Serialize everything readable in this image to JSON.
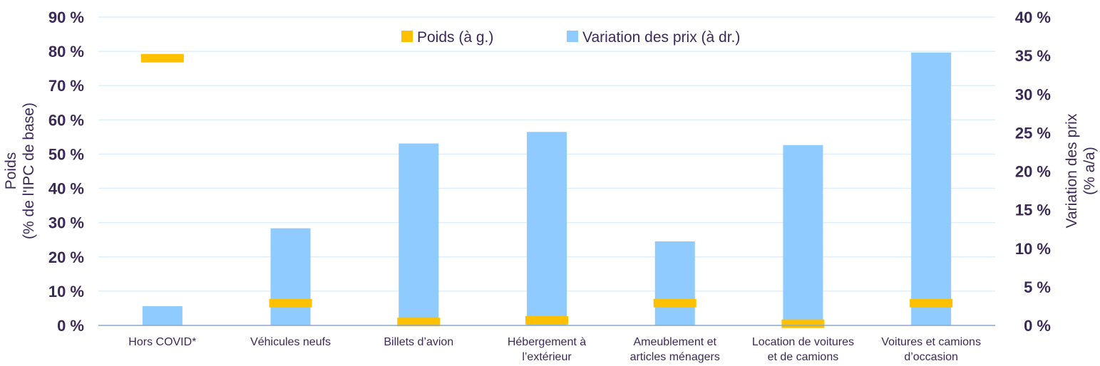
{
  "chart_data": {
    "type": "bar",
    "categories": [
      [
        "Hors COVID*"
      ],
      [
        "Véhicules neufs"
      ],
      [
        "Billets d’avion"
      ],
      [
        "Hébergement à",
        "l’extérieur"
      ],
      [
        "Ameublement et",
        "articles ménagers"
      ],
      [
        "Location de voitures",
        "et de camions"
      ],
      [
        "Voitures et camions",
        "d’occasion"
      ]
    ],
    "series": [
      {
        "name": "Poids (à g.)",
        "axis": "left",
        "mark": "dash",
        "color": "#ffc000",
        "values": [
          78,
          6.5,
          1,
          1.5,
          6.5,
          0.5,
          6.5
        ]
      },
      {
        "name": "Variation des prix  (à dr.)",
        "axis": "right",
        "mark": "bar",
        "color": "#8fcbfe",
        "values": [
          2.5,
          12.6,
          23.6,
          25.1,
          10.9,
          23.4,
          35.4
        ]
      }
    ],
    "y_left": {
      "label": [
        "Poids",
        "(% de l'IPC de base)"
      ],
      "ylim": [
        0,
        90
      ],
      "ticks": [
        "0 %",
        "10 %",
        "20 %",
        "30 %",
        "40 %",
        "50 %",
        "60 %",
        "70 %",
        "80 %",
        "90 %"
      ]
    },
    "y_right": {
      "label": [
        "Variation des prix",
        "(% a/a)"
      ],
      "ylim": [
        0,
        40
      ],
      "ticks": [
        "0 %",
        "5 %",
        "10 %",
        "15 %",
        "20 %",
        "25 %",
        "30 %",
        "35 %",
        "40 %"
      ]
    },
    "grid": true,
    "legend_position": "top-center",
    "colors": {
      "grid": "#ddeffc",
      "axis": "#8aa8c8",
      "text": "#3b2a57"
    }
  }
}
